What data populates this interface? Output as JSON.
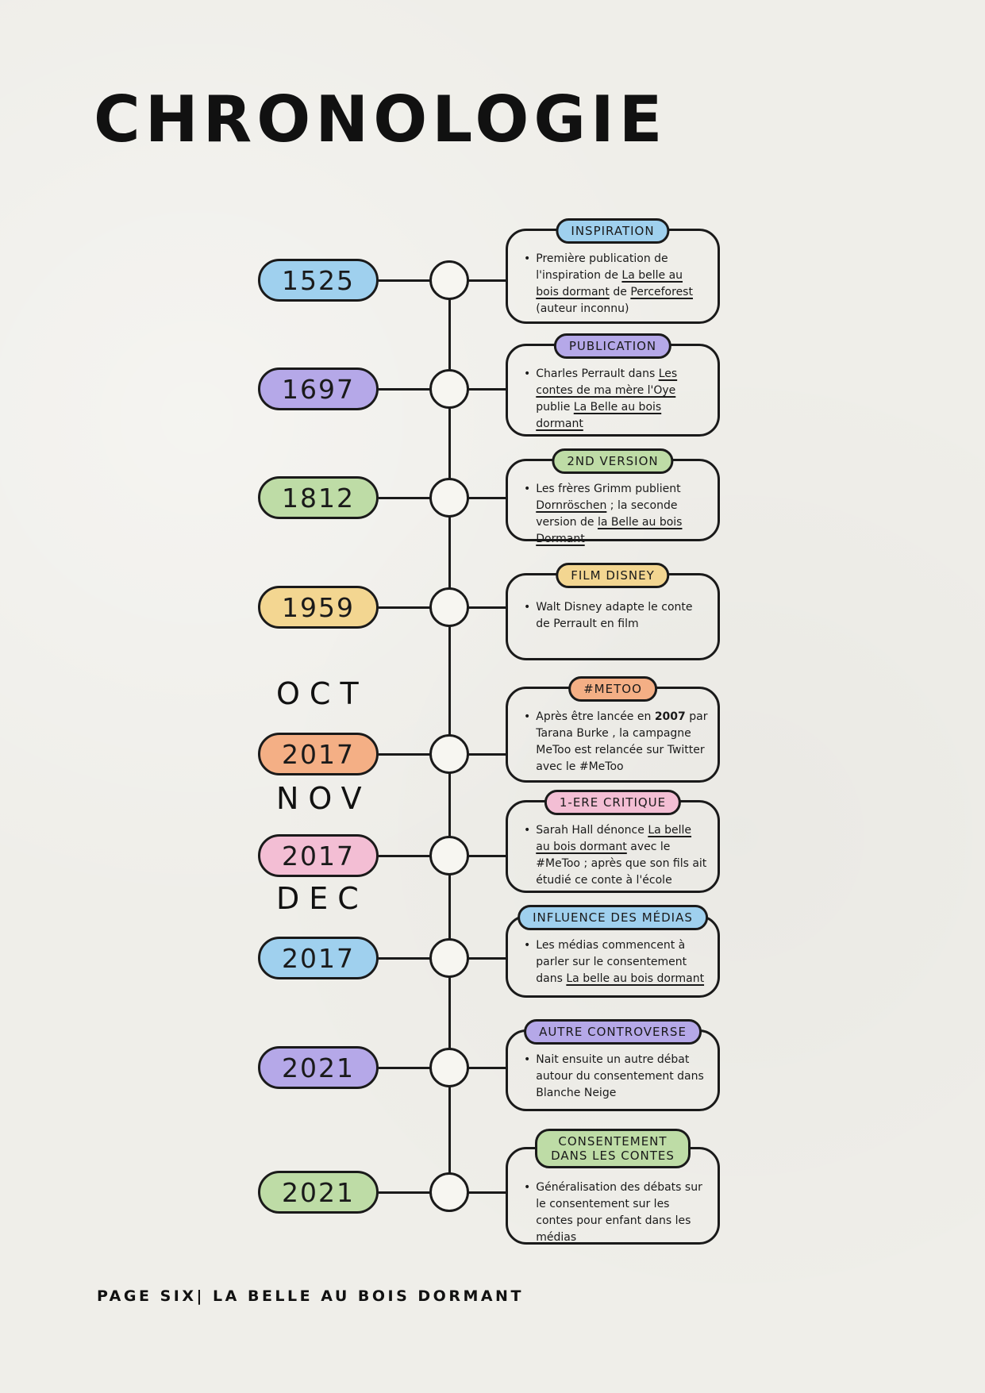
{
  "title": "CHRONOLOGIE",
  "footer": {
    "text": "PAGE SIX| LA BELLE AU BOIS DORMANT"
  },
  "colors": {
    "blue": "#9fd0ee",
    "purple": "#b5a8e8",
    "green": "#bedca6",
    "yellow": "#f3d691",
    "orange": "#f4af85",
    "pink": "#f3bed4",
    "ink": "#1a1a1a",
    "paper": "#efeee9"
  },
  "rows": [
    {
      "month": null,
      "year": "1525",
      "color": "blue",
      "badge": "INSPIRATION",
      "body": [
        {
          "t": "Première publication de l'inspiration de "
        },
        {
          "t": "La belle au bois dormant",
          "u": true
        },
        {
          "t": " de "
        },
        {
          "t": "Perceforest",
          "u": true
        },
        {
          "t": " (auteur inconnu)"
        }
      ]
    },
    {
      "month": null,
      "year": "1697",
      "color": "purple",
      "badge": "PUBLICATION",
      "body": [
        {
          "t": "Charles Perrault dans "
        },
        {
          "t": "Les contes de ma mère l'Oye",
          "u": true
        },
        {
          "t": " publie "
        },
        {
          "t": "La Belle au bois dormant",
          "u": true
        }
      ]
    },
    {
      "month": null,
      "year": "1812",
      "color": "green",
      "badge": "2ND VERSION",
      "body": [
        {
          "t": "Les frères Grimm publient "
        },
        {
          "t": "Dornröschen",
          "u": true
        },
        {
          "t": " ; la seconde version de "
        },
        {
          "t": "la Belle au bois Dormant",
          "u": true
        }
      ]
    },
    {
      "month": null,
      "year": "1959",
      "color": "yellow",
      "badge": "FILM DISNEY",
      "body": [
        {
          "t": "Walt Disney adapte le conte de Perrault en film"
        }
      ]
    },
    {
      "month": "OCT",
      "year": "2017",
      "color": "orange",
      "badge": "#METOO",
      "body": [
        {
          "t": "Après être lancée en "
        },
        {
          "t": "2007",
          "b": true
        },
        {
          "t": " par Tarana Burke , la campagne MeToo est relancée sur Twitter avec le #MeToo"
        }
      ]
    },
    {
      "month": "NOV",
      "year": "2017",
      "color": "pink",
      "badge": "1-ERE CRITIQUE",
      "body": [
        {
          "t": "Sarah Hall dénonce "
        },
        {
          "t": "La belle au bois dormant",
          "u": true
        },
        {
          "t": " avec le #MeToo ; après que son fils ait étudié ce conte à l'école"
        }
      ]
    },
    {
      "month": "DEC",
      "year": "2017",
      "color": "blue",
      "badge": "INFLUENCE DES MÉDIAS",
      "body": [
        {
          "t": "Les médias commencent à parler sur le consentement dans "
        },
        {
          "t": "La belle au bois dormant",
          "u": true
        }
      ]
    },
    {
      "month": null,
      "year": "2021",
      "color": "purple",
      "badge": "AUTRE CONTROVERSE",
      "body": [
        {
          "t": "Nait ensuite un autre débat autour du consentement dans Blanche Neige"
        }
      ]
    },
    {
      "month": null,
      "year": "2021",
      "color": "green",
      "badge": "CONSENTEMENT DANS LES CONTES",
      "badge_wrap": true,
      "body": [
        {
          "t": "Généralisation des débats sur le consentement sur les contes pour enfant dans les médias"
        }
      ]
    }
  ]
}
